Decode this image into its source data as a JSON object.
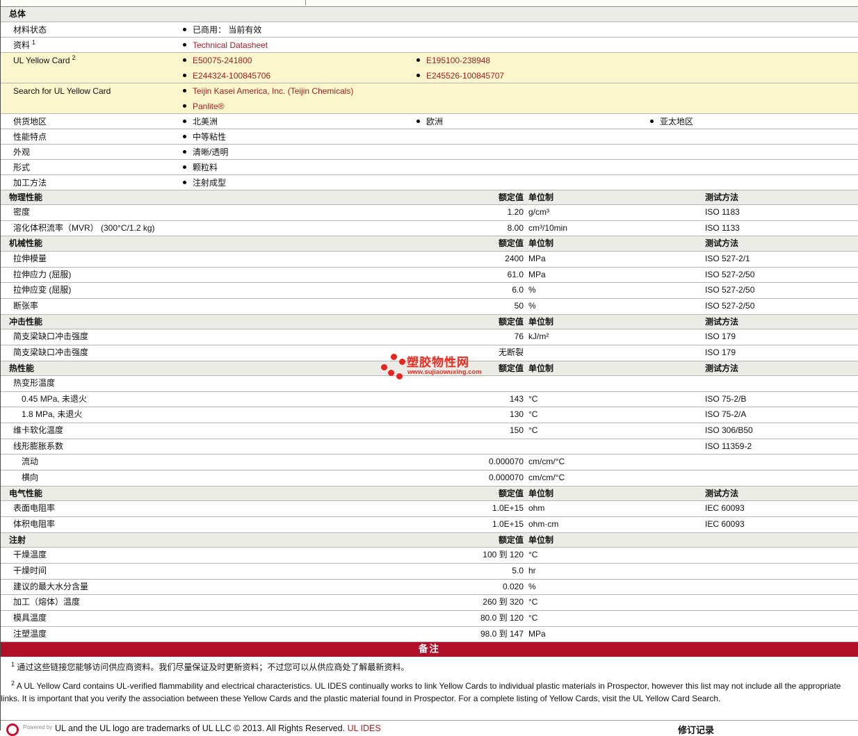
{
  "colors": {
    "link_red": "#A02024",
    "band_red": "#B00F28",
    "yellow_highlight": "#FBF6CB",
    "section_header_bg": "#ECECE6",
    "logo_red": "#E8251C",
    "ul_ring_red": "#C8102E"
  },
  "logo": {
    "name": "塑胶物性网",
    "url": "www.sujiaowuxing.com"
  },
  "table": {
    "value_column_header": "额定值",
    "unit_column_header": "单位制",
    "method_column_header": "测试方法",
    "blocks": [
      {
        "t": "sec",
        "label": "总体",
        "value": "",
        "unit": "",
        "method": ""
      },
      {
        "t": "bul",
        "label": "材料状态",
        "sup": "",
        "yellow": false,
        "lines": [
          [
            {
              "text": "已商用： 当前有效",
              "link": false,
              "col": 0
            }
          ]
        ]
      },
      {
        "t": "bul",
        "label": "资料",
        "sup": "1",
        "yellow": false,
        "lines": [
          [
            {
              "text": "Technical Datasheet",
              "link": true,
              "col": 0
            }
          ]
        ]
      },
      {
        "t": "bul",
        "label": "UL Yellow Card",
        "sup": "2",
        "yellow": true,
        "lines": [
          [
            {
              "text": "E50075-241800",
              "link": true,
              "col": 0
            },
            {
              "text": "E195100-238948",
              "link": true,
              "col": 1
            }
          ],
          [
            {
              "text": "E244324-100845706",
              "link": true,
              "col": 0
            },
            {
              "text": "E245526-100845707",
              "link": true,
              "col": 1
            }
          ]
        ]
      },
      {
        "t": "bul",
        "label": "Search for UL Yellow Card",
        "sup": "",
        "yellow": true,
        "lines": [
          [
            {
              "text": "Teijin Kasei America, Inc. (Teijin Chemicals)",
              "link": true,
              "col": 0
            }
          ],
          [
            {
              "text": "Panlite®",
              "link": true,
              "col": 0
            }
          ]
        ]
      },
      {
        "t": "bul",
        "label": "供货地区",
        "sup": "",
        "yellow": false,
        "lines": [
          [
            {
              "text": "北美洲",
              "link": false,
              "col": 0
            },
            {
              "text": "欧洲",
              "link": false,
              "col": 1
            },
            {
              "text": "亚太地区",
              "link": false,
              "col": 2
            }
          ]
        ]
      },
      {
        "t": "bul",
        "label": "性能特点",
        "sup": "",
        "yellow": false,
        "lines": [
          [
            {
              "text": "中等粘性",
              "link": false,
              "col": 0
            }
          ]
        ]
      },
      {
        "t": "bul",
        "label": "外观",
        "sup": "",
        "yellow": false,
        "lines": [
          [
            {
              "text": "清晰/透明",
              "link": false,
              "col": 0
            }
          ]
        ]
      },
      {
        "t": "bul",
        "label": "形式",
        "sup": "",
        "yellow": false,
        "lines": [
          [
            {
              "text": "颗粒料",
              "link": false,
              "col": 0
            }
          ]
        ]
      },
      {
        "t": "bul",
        "label": "加工方法",
        "sup": "",
        "yellow": false,
        "lines": [
          [
            {
              "text": "注射成型",
              "link": false,
              "col": 0
            }
          ]
        ]
      },
      {
        "t": "sec",
        "label": "物理性能",
        "value": "额定值",
        "unit": "单位制",
        "method": "测试方法"
      },
      {
        "t": "pr",
        "label": "密度",
        "ind": 0,
        "value": "1.20",
        "unit": "g/cm³",
        "method": "ISO 1183"
      },
      {
        "t": "pr",
        "label": "溶化体积流率（MVR） (300°C/1.2 kg)",
        "ind": 0,
        "value": "8.00",
        "unit": "cm³/10min",
        "method": "ISO 1133"
      },
      {
        "t": "sec",
        "label": "机械性能",
        "value": "额定值",
        "unit": "单位制",
        "method": "测试方法"
      },
      {
        "t": "pr",
        "label": "拉伸模量",
        "ind": 0,
        "value": "2400",
        "unit": "MPa",
        "method": "ISO 527-2/1"
      },
      {
        "t": "pr",
        "label": "拉伸应力 (屈服)",
        "ind": 0,
        "value": "61.0",
        "unit": "MPa",
        "method": "ISO 527-2/50"
      },
      {
        "t": "pr",
        "label": "拉伸应变 (屈服)",
        "ind": 0,
        "value": "6.0",
        "unit": "%",
        "method": "ISO 527-2/50"
      },
      {
        "t": "pr",
        "label": "断张率",
        "ind": 0,
        "value": "50",
        "unit": "%",
        "method": "ISO 527-2/50"
      },
      {
        "t": "sec",
        "label": "冲击性能",
        "value": "额定值",
        "unit": "单位制",
        "method": "测试方法"
      },
      {
        "t": "pr",
        "label": "简支梁缺口冲击强度",
        "ind": 0,
        "value": "76",
        "unit": "kJ/m²",
        "method": "ISO 179"
      },
      {
        "t": "pr",
        "label": "简支梁缺口冲击强度",
        "ind": 0,
        "value": "无断裂",
        "unit": "",
        "method": "ISO 179"
      },
      {
        "t": "sec",
        "label": "热性能",
        "value": "额定值",
        "unit": "单位制",
        "method": "测试方法"
      },
      {
        "t": "pr",
        "label": "热变形温度",
        "ind": 0,
        "value": "",
        "unit": "",
        "method": ""
      },
      {
        "t": "pr",
        "label": "0.45 MPa, 未退火",
        "ind": 1,
        "value": "143",
        "unit": "°C",
        "method": "ISO 75-2/B"
      },
      {
        "t": "pr",
        "label": "1.8 MPa, 未退火",
        "ind": 1,
        "value": "130",
        "unit": "°C",
        "method": "ISO 75-2/A"
      },
      {
        "t": "pr",
        "label": "维卡软化温度",
        "ind": 0,
        "value": "150",
        "unit": "°C",
        "method": "ISO 306/B50"
      },
      {
        "t": "pr",
        "label": "线形膨胀系数",
        "ind": 0,
        "value": "",
        "unit": "",
        "method": "ISO 11359-2"
      },
      {
        "t": "pr",
        "label": "流动",
        "ind": 1,
        "value": "0.000070",
        "unit": "cm/cm/°C",
        "method": ""
      },
      {
        "t": "pr",
        "label": "横向",
        "ind": 1,
        "value": "0.000070",
        "unit": "cm/cm/°C",
        "method": ""
      },
      {
        "t": "sec",
        "label": "电气性能",
        "value": "额定值",
        "unit": "单位制",
        "method": "测试方法"
      },
      {
        "t": "pr",
        "label": "表面电阻率",
        "ind": 0,
        "value": "1.0E+15",
        "unit": "ohm",
        "method": "IEC 60093"
      },
      {
        "t": "pr",
        "label": "体积电阻率",
        "ind": 0,
        "value": "1.0E+15",
        "unit": "ohm·cm",
        "method": "IEC 60093"
      },
      {
        "t": "sec",
        "label": "注射",
        "value": "额定值",
        "unit": "单位制",
        "method": ""
      },
      {
        "t": "pr",
        "label": "干燥温度",
        "ind": 0,
        "value": "100 到 120",
        "unit": "°C",
        "method": ""
      },
      {
        "t": "pr",
        "label": "干燥时间",
        "ind": 0,
        "value": "5.0",
        "unit": "hr",
        "method": ""
      },
      {
        "t": "pr",
        "label": "建议的最大水分含量",
        "ind": 0,
        "value": "0.020",
        "unit": "%",
        "method": ""
      },
      {
        "t": "pr",
        "label": "加工（熔体）温度",
        "ind": 0,
        "value": "260 到 320",
        "unit": "°C",
        "method": ""
      },
      {
        "t": "pr",
        "label": "模具温度",
        "ind": 0,
        "value": "80.0 到 120",
        "unit": "°C",
        "method": ""
      },
      {
        "t": "pr",
        "label": "注塑温度",
        "ind": 0,
        "value": "98.0 到 147",
        "unit": "MPa",
        "method": ""
      },
      {
        "t": "band",
        "label": "备注"
      }
    ]
  },
  "notes": {
    "note1_sup": "1",
    "note1_text": "通过这些链接您能够访问供应商资料。我们尽量保证及时更新资料；不过您可以从供应商处了解最新资料。",
    "note2_sup": "2",
    "note2_text": "A UL Yellow Card contains UL-verified flammability and electrical characteristics. UL IDES continually works to link Yellow Cards to individual plastic materials in Prospector, however this list may not include all the appropriate links. It is important that you verify the association between these Yellow Cards and the plastic material found in Prospector. For a complete listing of Yellow Cards, visit the UL Yellow Card Search."
  },
  "footer": {
    "powered_by": "Powered by",
    "trademark": "UL and the UL logo are trademarks of UL LLC © 2013. All Rights Reserved.",
    "link": "UL IDES",
    "revision": "修订记录"
  }
}
